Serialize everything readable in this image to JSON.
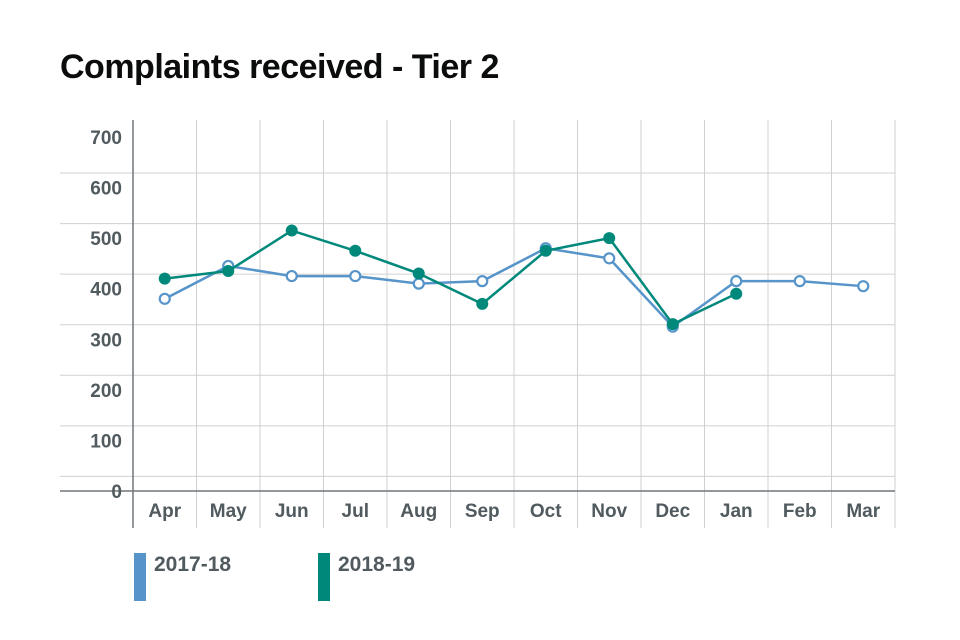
{
  "chart_data": {
    "type": "line",
    "title": "Complaints received - Tier 2",
    "xlabel": "",
    "ylabel": "",
    "categories": [
      "Apr",
      "May",
      "Jun",
      "Jul",
      "Aug",
      "Sep",
      "Oct",
      "Nov",
      "Dec",
      "Jan",
      "Feb",
      "Mar"
    ],
    "yticks": [
      0,
      100,
      200,
      300,
      400,
      500,
      600,
      700
    ],
    "ylim": [
      0,
      700
    ],
    "grid": true,
    "legend_position": "bottom-left",
    "series": [
      {
        "name": "2017-18",
        "color": "#5694ca",
        "marker": "hollow-circle",
        "values": [
          380,
          445,
          425,
          425,
          410,
          415,
          480,
          460,
          325,
          415,
          415,
          405
        ]
      },
      {
        "name": "2018-19",
        "color": "#00897b",
        "marker": "filled-circle",
        "values": [
          420,
          435,
          515,
          475,
          430,
          370,
          475,
          500,
          330,
          390,
          null,
          null
        ]
      }
    ]
  }
}
